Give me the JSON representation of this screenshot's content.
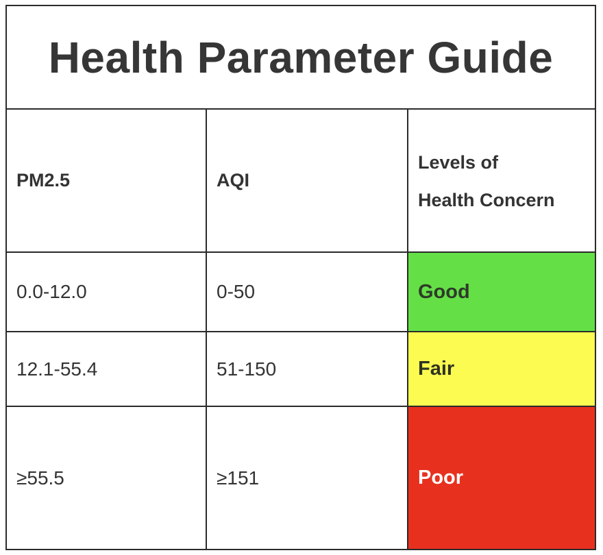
{
  "title": "Health Parameter Guide",
  "headers": {
    "pm25": "PM2.5",
    "aqi": "AQI",
    "concern_line1": "Levels of",
    "concern_line2": "Health Concern"
  },
  "rows": [
    {
      "pm25": "0.0-12.0",
      "aqi": "0-50",
      "level": "Good",
      "level_color": "#64e046"
    },
    {
      "pm25": "12.1-55.4",
      "aqi": "51-150",
      "level": "Fair",
      "level_color": "#fbfb51"
    },
    {
      "pm25": "≥55.5",
      "aqi": "≥151",
      "level": "Poor",
      "level_color": "#e8301f"
    }
  ],
  "colors": {
    "border": "#2a2a2a",
    "text": "#333333"
  }
}
